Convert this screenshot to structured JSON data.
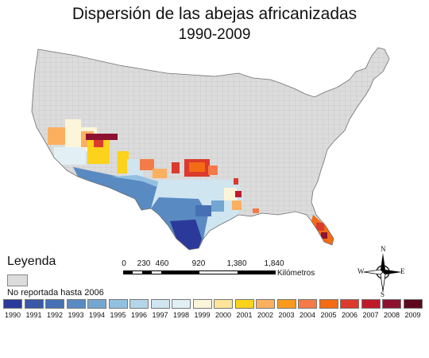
{
  "title": "Dispersión de las abejas africanizadas",
  "subtitle": "1990-2009",
  "legend": {
    "heading": "Leyenda",
    "not_reported": {
      "label": "No reportada hasta 2006",
      "color": "#dcdcdc"
    },
    "years": [
      {
        "year": "1990",
        "color": "#2b3a9a"
      },
      {
        "year": "1991",
        "color": "#3a58a8"
      },
      {
        "year": "1992",
        "color": "#4670b4"
      },
      {
        "year": "1993",
        "color": "#5a8ac2"
      },
      {
        "year": "1994",
        "color": "#74a6d2"
      },
      {
        "year": "1995",
        "color": "#92c0e0"
      },
      {
        "year": "1996",
        "color": "#b4d6ea"
      },
      {
        "year": "1997",
        "color": "#cfe5f0"
      },
      {
        "year": "1998",
        "color": "#e2f0f6"
      },
      {
        "year": "1999",
        "color": "#fdf5d9"
      },
      {
        "year": "2000",
        "color": "#fde49a"
      },
      {
        "year": "2001",
        "color": "#fcd21a"
      },
      {
        "year": "2002",
        "color": "#fbb060"
      },
      {
        "year": "2003",
        "color": "#f99a1c"
      },
      {
        "year": "2004",
        "color": "#f47a48"
      },
      {
        "year": "2005",
        "color": "#f36b14"
      },
      {
        "year": "2006",
        "color": "#dc3a2c"
      },
      {
        "year": "2007",
        "color": "#bf1a2a"
      },
      {
        "year": "2008",
        "color": "#8e1230"
      },
      {
        "year": "2009",
        "color": "#5a0a1c"
      }
    ]
  },
  "scale": {
    "ticks": [
      "0",
      "230",
      "460",
      "920",
      "1,380",
      "1,840"
    ],
    "unit": "Kilómetros"
  },
  "compass": {
    "n": "N",
    "s": "S",
    "e": "E",
    "w": "W"
  },
  "map": {
    "land_color": "#dcdcdc",
    "county_line_color": "#b8b8b8",
    "outline_color": "#6e6e6e"
  }
}
